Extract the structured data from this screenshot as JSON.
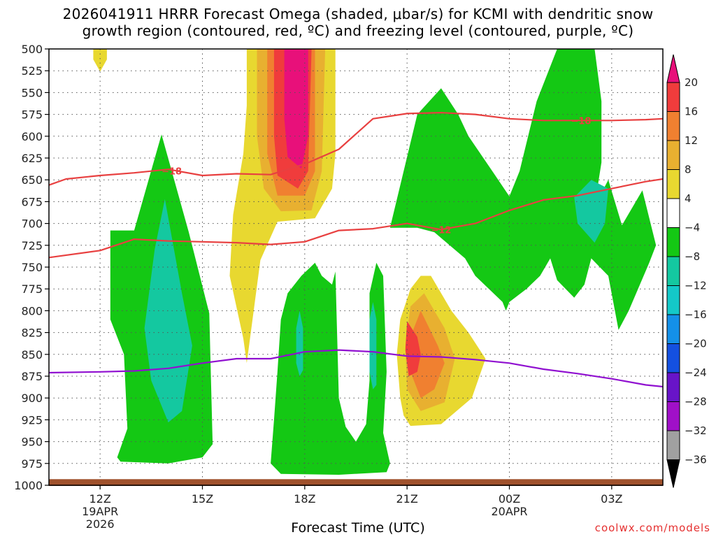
{
  "chart_data": {
    "type": "heatmap",
    "title": {
      "line1": "2026041911 HRRR Forecast Omega (shaded, μbar/s) for KCMI with dendritic snow",
      "line2": "growth region (contoured, red, ºC) and freezing level (contoured, purple, ºC)"
    },
    "xlabel": "Forecast Time (UTC)",
    "credit": "coolwx.com/models",
    "x_range_hours": [
      10.5,
      28.5
    ],
    "y_range_hpa": [
      500,
      1000
    ],
    "pressure_ticks": [
      500,
      525,
      550,
      575,
      600,
      625,
      650,
      675,
      700,
      725,
      750,
      775,
      800,
      825,
      850,
      875,
      900,
      925,
      950,
      975,
      1000
    ],
    "time_ticks": [
      {
        "hour": 12,
        "label": "12Z",
        "date": "19APR",
        "year": "2026"
      },
      {
        "hour": 15,
        "label": "15Z",
        "date": "",
        "year": ""
      },
      {
        "hour": 18,
        "label": "18Z",
        "date": "",
        "year": ""
      },
      {
        "hour": 21,
        "label": "21Z",
        "date": "",
        "year": ""
      },
      {
        "hour": 24,
        "label": "00Z",
        "date": "20APR",
        "year": ""
      },
      {
        "hour": 27,
        "label": "03Z",
        "date": "",
        "year": ""
      }
    ],
    "colorbar": {
      "labels": [
        "20",
        "16",
        "12",
        "8",
        "4",
        "−4",
        "−8",
        "−12",
        "−16",
        "−20",
        "−24",
        "−28",
        "−32",
        "−36"
      ],
      "colors": {
        "over": "#e8107a",
        "c16_20": "#f03c3c",
        "c12_16": "#f08030",
        "c8_12": "#e8b030",
        "c4_8": "#e8d830",
        "neutral": "#ffffff",
        "cm8_m4": "#14c814",
        "cm12_m8": "#14c8a0",
        "cm16_m12": "#14c8c8",
        "cm20_m16": "#1490e8",
        "cm24_m20": "#1450e0",
        "cm28_m24": "#6814c8",
        "cm32_m28": "#a010c8",
        "cm36_m32": "#a0a0a0",
        "under": "#000000"
      }
    },
    "colors": {
      "dgz_contour": "#e84040",
      "freezing_level": "#9010d0",
      "ground": "#a0522d"
    },
    "contour_labels": {
      "minus18_left": "−18",
      "minus18_right": "−18",
      "minus12": "−12"
    },
    "isotherm_minus18": [
      [
        10.5,
        656
      ],
      [
        11,
        649
      ],
      [
        12,
        645
      ],
      [
        13,
        642
      ],
      [
        14,
        638
      ],
      [
        15,
        645
      ],
      [
        16,
        643
      ],
      [
        17,
        644
      ],
      [
        18,
        632
      ],
      [
        19,
        615
      ],
      [
        20,
        580
      ],
      [
        21,
        574
      ],
      [
        22,
        573
      ],
      [
        23,
        575
      ],
      [
        24,
        580
      ],
      [
        25,
        582
      ],
      [
        26,
        582
      ],
      [
        27,
        582
      ],
      [
        28,
        581
      ],
      [
        28.5,
        580
      ]
    ],
    "isotherm_minus12": [
      [
        10.5,
        739
      ],
      [
        12,
        731
      ],
      [
        13,
        718
      ],
      [
        14,
        720
      ],
      [
        15,
        721
      ],
      [
        16,
        722
      ],
      [
        17,
        724
      ],
      [
        18,
        721
      ],
      [
        19,
        708
      ],
      [
        20,
        706
      ],
      [
        21,
        700
      ],
      [
        22,
        707
      ],
      [
        23,
        700
      ],
      [
        24,
        685
      ],
      [
        25,
        673
      ],
      [
        26,
        668
      ],
      [
        27,
        660
      ],
      [
        28,
        652
      ],
      [
        28.5,
        649
      ]
    ],
    "freezing_level_line": [
      [
        10.5,
        871
      ],
      [
        12,
        870
      ],
      [
        13,
        869
      ],
      [
        14,
        866
      ],
      [
        15,
        860
      ],
      [
        16,
        855
      ],
      [
        17,
        855
      ],
      [
        18,
        847
      ],
      [
        19,
        845
      ],
      [
        20,
        847
      ],
      [
        21,
        852
      ],
      [
        22,
        853
      ],
      [
        23,
        856
      ],
      [
        24,
        860
      ],
      [
        25,
        867
      ],
      [
        26,
        872
      ],
      [
        27,
        878
      ],
      [
        28,
        885
      ],
      [
        28.5,
        887
      ]
    ],
    "regions": [
      {
        "color": "cm8_m4",
        "pts": [
          [
            12.3,
            708
          ],
          [
            13,
            708
          ],
          [
            13.8,
            598
          ],
          [
            14.6,
            710
          ],
          [
            15.2,
            803
          ],
          [
            15.3,
            953
          ],
          [
            15,
            968
          ],
          [
            14,
            975
          ],
          [
            12.6,
            973
          ],
          [
            12.5,
            968
          ],
          [
            12.8,
            935
          ],
          [
            12.7,
            850
          ],
          [
            12.3,
            810
          ]
        ]
      },
      {
        "color": "cm12_m8",
        "pts": [
          [
            13.9,
            672
          ],
          [
            14.4,
            780
          ],
          [
            14.7,
            840
          ],
          [
            14.4,
            915
          ],
          [
            14,
            928
          ],
          [
            13.5,
            880
          ],
          [
            13.3,
            820
          ],
          [
            13.6,
            730
          ]
        ]
      },
      {
        "color": "c4_8",
        "pts": [
          [
            16.3,
            500
          ],
          [
            18.9,
            500
          ],
          [
            18.9,
            620
          ],
          [
            18.8,
            660
          ],
          [
            18.3,
            694
          ],
          [
            17.2,
            698
          ],
          [
            16.7,
            742
          ],
          [
            16.3,
            860
          ],
          [
            16.2,
            832
          ],
          [
            15.8,
            760
          ],
          [
            15.9,
            690
          ],
          [
            16.2,
            620
          ],
          [
            16.3,
            565
          ]
        ]
      },
      {
        "color": "c8_12",
        "pts": [
          [
            16.6,
            500
          ],
          [
            18.6,
            500
          ],
          [
            18.5,
            640
          ],
          [
            18.2,
            685
          ],
          [
            17.3,
            686
          ],
          [
            16.8,
            660
          ],
          [
            16.6,
            600
          ]
        ]
      },
      {
        "color": "c12_16",
        "pts": [
          [
            16.9,
            500
          ],
          [
            18.3,
            500
          ],
          [
            18.3,
            640
          ],
          [
            18.0,
            668
          ],
          [
            17.2,
            668
          ],
          [
            16.9,
            620
          ]
        ]
      },
      {
        "color": "c16_20",
        "pts": [
          [
            17.1,
            500
          ],
          [
            18.2,
            500
          ],
          [
            18.1,
            640
          ],
          [
            17.8,
            660
          ],
          [
            17.2,
            645
          ],
          [
            17.1,
            600
          ]
        ]
      },
      {
        "color": "over",
        "pts": [
          [
            17.4,
            500
          ],
          [
            18.1,
            500
          ],
          [
            18.1,
            600
          ],
          [
            17.9,
            637
          ],
          [
            17.5,
            624
          ],
          [
            17.4,
            580
          ]
        ]
      },
      {
        "color": "c4_8",
        "pts": [
          [
            11.8,
            500
          ],
          [
            12.2,
            500
          ],
          [
            12.2,
            512
          ],
          [
            12.0,
            526
          ],
          [
            11.8,
            512
          ]
        ]
      },
      {
        "color": "cm8_m4",
        "pts": [
          [
            20.5,
            705
          ],
          [
            21.3,
            575
          ],
          [
            22.0,
            545
          ],
          [
            22.5,
            575
          ],
          [
            22.8,
            600
          ],
          [
            23.5,
            640
          ],
          [
            24,
            669
          ],
          [
            24.3,
            640
          ],
          [
            24.8,
            560
          ],
          [
            25.4,
            500
          ],
          [
            26.5,
            500
          ],
          [
            26.7,
            560
          ],
          [
            26.7,
            630
          ],
          [
            26.5,
            680
          ],
          [
            26.9,
            650
          ],
          [
            27.3,
            702
          ],
          [
            27.9,
            662
          ],
          [
            28.3,
            725
          ],
          [
            28.1,
            745
          ],
          [
            27.5,
            800
          ],
          [
            27.2,
            822
          ],
          [
            26.9,
            760
          ],
          [
            26.4,
            740
          ],
          [
            26.2,
            770
          ],
          [
            25.9,
            785
          ],
          [
            25.4,
            765
          ],
          [
            25.2,
            740
          ],
          [
            24.9,
            760
          ],
          [
            24.5,
            775
          ],
          [
            24.0,
            790
          ],
          [
            23.9,
            800
          ],
          [
            23.8,
            790
          ],
          [
            23.0,
            760
          ],
          [
            22.7,
            740
          ],
          [
            21.8,
            710
          ],
          [
            21.3,
            705
          ]
        ]
      },
      {
        "color": "cm12_m8",
        "pts": [
          [
            26.4,
            650
          ],
          [
            26.9,
            660
          ],
          [
            26.8,
            700
          ],
          [
            26.5,
            722
          ],
          [
            26.0,
            700
          ],
          [
            25.9,
            670
          ]
        ]
      },
      {
        "color": "cm8_m4",
        "pts": [
          [
            18.9,
            755
          ],
          [
            19.0,
            900
          ],
          [
            19.2,
            933
          ],
          [
            19.5,
            950
          ],
          [
            19.8,
            930
          ],
          [
            19.9,
            880
          ],
          [
            19.9,
            780
          ],
          [
            20.1,
            745
          ],
          [
            20.3,
            760
          ],
          [
            20.4,
            870
          ],
          [
            20.3,
            940
          ],
          [
            20.5,
            975
          ],
          [
            20.4,
            985
          ],
          [
            19,
            988
          ],
          [
            17.3,
            987
          ],
          [
            17.0,
            975
          ],
          [
            17.1,
            925
          ],
          [
            17.2,
            870
          ],
          [
            17.3,
            810
          ],
          [
            17.5,
            780
          ],
          [
            17.9,
            760
          ],
          [
            18.3,
            745
          ],
          [
            18.5,
            760
          ],
          [
            18.8,
            770
          ]
        ]
      },
      {
        "color": "cm12_m8",
        "pts": [
          [
            17.85,
            800
          ],
          [
            17.95,
            820
          ],
          [
            17.95,
            868
          ],
          [
            17.85,
            875
          ],
          [
            17.75,
            860
          ],
          [
            17.75,
            820
          ]
        ]
      },
      {
        "color": "cm12_m8",
        "pts": [
          [
            20.0,
            790
          ],
          [
            20.1,
            810
          ],
          [
            20.1,
            885
          ],
          [
            20.0,
            890
          ],
          [
            19.9,
            870
          ],
          [
            19.9,
            810
          ]
        ]
      },
      {
        "color": "c4_8",
        "pts": [
          [
            21.7,
            760
          ],
          [
            22.3,
            800
          ],
          [
            22.8,
            825
          ],
          [
            23.3,
            855
          ],
          [
            22.9,
            900
          ],
          [
            22.0,
            930
          ],
          [
            21.1,
            932
          ],
          [
            20.9,
            920
          ],
          [
            20.8,
            900
          ],
          [
            20.7,
            850
          ],
          [
            20.8,
            810
          ],
          [
            21.1,
            775
          ],
          [
            21.4,
            760
          ]
        ]
      },
      {
        "color": "c8_12",
        "pts": [
          [
            21.5,
            780
          ],
          [
            22.1,
            820
          ],
          [
            22.4,
            855
          ],
          [
            22.1,
            905
          ],
          [
            21.4,
            915
          ],
          [
            21.0,
            890
          ],
          [
            20.95,
            840
          ],
          [
            21.1,
            795
          ]
        ]
      },
      {
        "color": "c12_16",
        "pts": [
          [
            21.4,
            800
          ],
          [
            21.9,
            840
          ],
          [
            22.1,
            860
          ],
          [
            21.8,
            890
          ],
          [
            21.4,
            900
          ],
          [
            21.1,
            870
          ],
          [
            21.1,
            830
          ]
        ]
      },
      {
        "color": "c16_20",
        "pts": [
          [
            21.0,
            812
          ],
          [
            21.3,
            830
          ],
          [
            21.4,
            850
          ],
          [
            21.3,
            870
          ],
          [
            21.05,
            875
          ],
          [
            20.95,
            845
          ]
        ]
      }
    ]
  }
}
